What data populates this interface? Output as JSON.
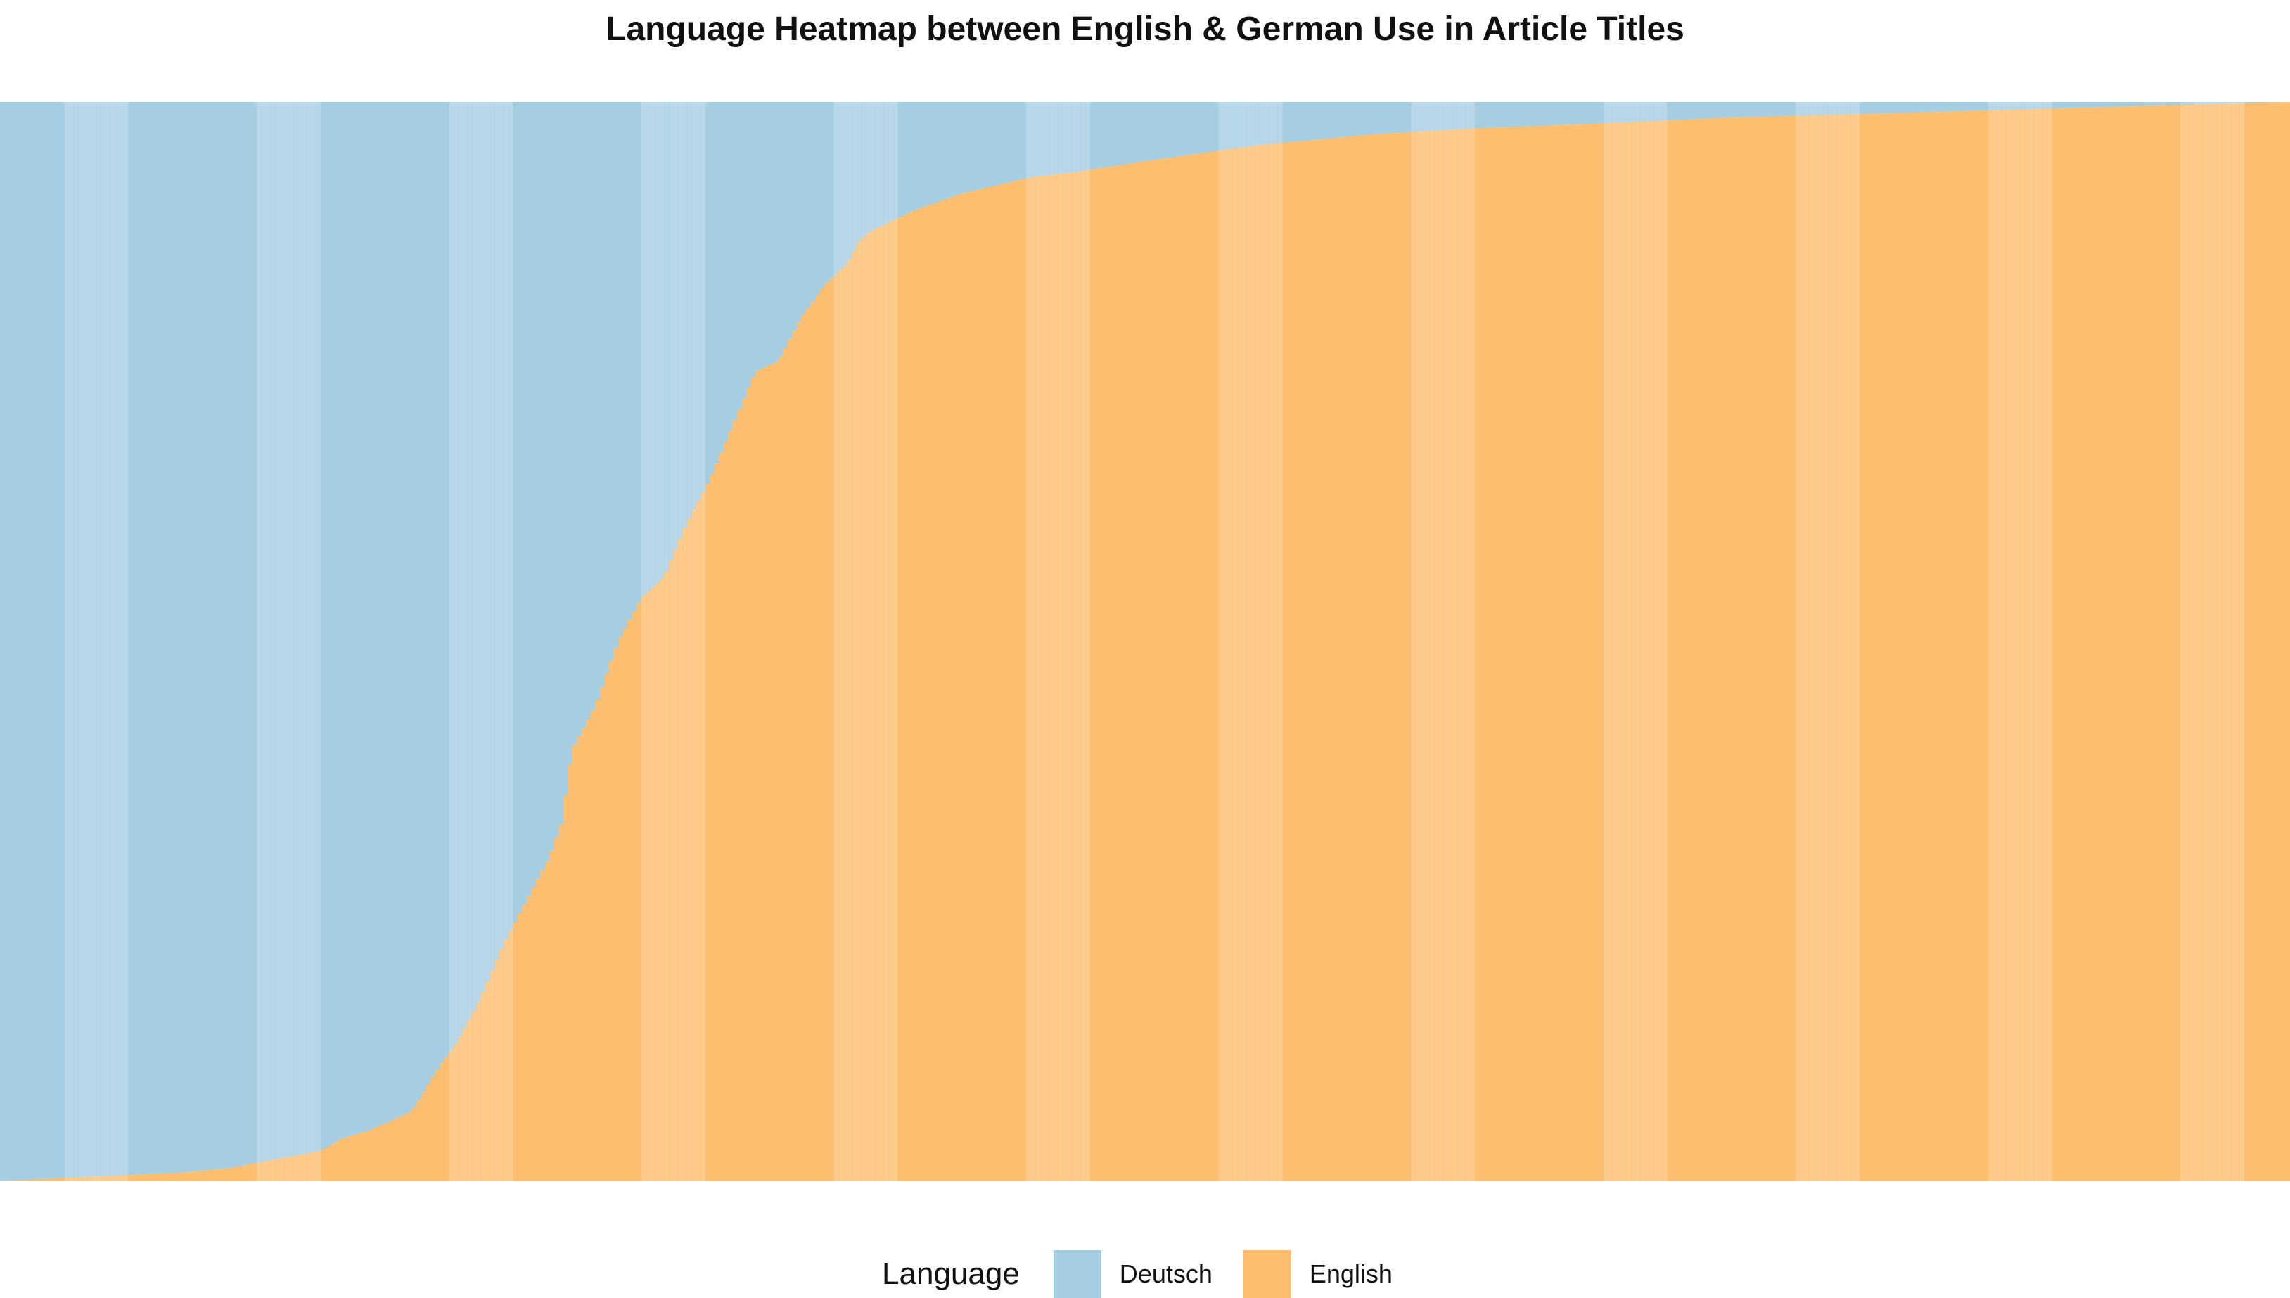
{
  "chart_data": {
    "type": "bar",
    "title": "Language Heatmap between English & German Use in Article Titles",
    "xlabel": "",
    "ylabel": "",
    "ylim": [
      0,
      1
    ],
    "legend": {
      "title": "Language",
      "position": "bottom",
      "entries": [
        {
          "name": "Deutsch",
          "color": "#A6CEE3"
        },
        {
          "name": "English",
          "color": "#FDBF6F"
        }
      ]
    },
    "n_bars": 500,
    "english_share_curve": {
      "x": [
        0,
        0.02,
        0.05,
        0.08,
        0.1,
        0.12,
        0.14,
        0.15,
        0.16,
        0.17,
        0.18,
        0.19,
        0.2,
        0.21,
        0.22,
        0.23,
        0.24,
        0.245,
        0.25,
        0.26,
        0.27,
        0.28,
        0.29,
        0.3,
        0.31,
        0.32,
        0.33,
        0.34,
        0.35,
        0.36,
        0.37,
        0.375,
        0.38,
        0.39,
        0.4,
        0.42,
        0.45,
        0.47,
        0.5,
        0.55,
        0.6,
        0.65,
        0.7,
        0.75,
        0.8,
        0.85,
        0.9,
        0.95,
        0.97,
        1
      ],
      "y": [
        0,
        0.002,
        0.005,
        0.008,
        0.012,
        0.02,
        0.028,
        0.04,
        0.046,
        0.055,
        0.065,
        0.1,
        0.13,
        0.17,
        0.22,
        0.26,
        0.3,
        0.33,
        0.4,
        0.44,
        0.5,
        0.54,
        0.56,
        0.61,
        0.65,
        0.7,
        0.75,
        0.76,
        0.8,
        0.83,
        0.85,
        0.87,
        0.88,
        0.89,
        0.9,
        0.915,
        0.93,
        0.935,
        0.945,
        0.96,
        0.97,
        0.976,
        0.98,
        0.985,
        0.988,
        0.991,
        0.994,
        0.997,
        0.998,
        1
      ]
    }
  }
}
